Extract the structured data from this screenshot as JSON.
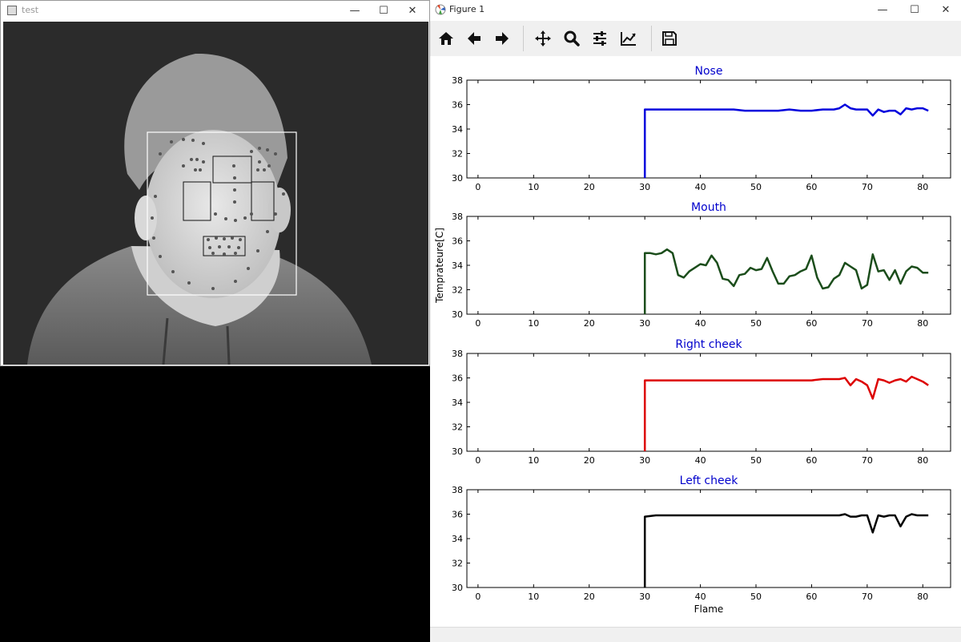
{
  "test_window": {
    "title": "test",
    "controls": [
      "—",
      "☐",
      "✕"
    ]
  },
  "figure_window": {
    "title": "Figure 1",
    "controls": [
      "—",
      "☐",
      "✕"
    ],
    "toolbar": [
      "home-icon",
      "back-icon",
      "forward-icon",
      "pan-icon",
      "zoom-icon",
      "configure-icon",
      "edit-axis-icon",
      "save-icon"
    ]
  },
  "colors": {
    "nose": "#0000dd",
    "mouth": "#1b4d1b",
    "right_cheek": "#dd0000",
    "left_cheek": "#000000",
    "title": "#0000cc"
  },
  "chart_data": [
    {
      "type": "line",
      "title": "Nose",
      "xlabel": "",
      "ylabel": "",
      "xlim": [
        -2,
        85
      ],
      "ylim": [
        30,
        38
      ],
      "xticks": [
        0,
        10,
        20,
        30,
        40,
        50,
        60,
        70,
        80
      ],
      "yticks": [
        30,
        32,
        34,
        36,
        38
      ],
      "series": [
        {
          "color": "#0000dd",
          "x": [
            30,
            30,
            32,
            34,
            36,
            38,
            40,
            42,
            44,
            46,
            48,
            50,
            52,
            54,
            56,
            58,
            60,
            62,
            64,
            65,
            66,
            67,
            68,
            69,
            70,
            71,
            72,
            73,
            74,
            75,
            76,
            77,
            78,
            79,
            80,
            81
          ],
          "y": [
            30,
            35.6,
            35.6,
            35.6,
            35.6,
            35.6,
            35.6,
            35.6,
            35.6,
            35.6,
            35.5,
            35.5,
            35.5,
            35.5,
            35.6,
            35.5,
            35.5,
            35.6,
            35.6,
            35.7,
            36.0,
            35.7,
            35.6,
            35.6,
            35.6,
            35.1,
            35.6,
            35.4,
            35.5,
            35.5,
            35.2,
            35.7,
            35.6,
            35.7,
            35.7,
            35.5
          ]
        }
      ]
    },
    {
      "type": "line",
      "title": "Mouth",
      "xlabel": "",
      "ylabel": "Temprateure[C]",
      "xlim": [
        -2,
        85
      ],
      "ylim": [
        30,
        38
      ],
      "xticks": [
        0,
        10,
        20,
        30,
        40,
        50,
        60,
        70,
        80
      ],
      "yticks": [
        30,
        32,
        34,
        36,
        38
      ],
      "series": [
        {
          "color": "#1b4d1b",
          "x": [
            30,
            30,
            31,
            32,
            33,
            34,
            35,
            36,
            37,
            38,
            39,
            40,
            41,
            42,
            43,
            44,
            45,
            46,
            47,
            48,
            49,
            50,
            51,
            52,
            53,
            54,
            55,
            56,
            57,
            58,
            59,
            60,
            61,
            62,
            63,
            64,
            65,
            66,
            67,
            68,
            69,
            70,
            71,
            72,
            73,
            74,
            75,
            76,
            77,
            78,
            79,
            80,
            81
          ],
          "y": [
            30,
            35.0,
            35.0,
            34.9,
            35.0,
            35.3,
            35.0,
            33.2,
            33.0,
            33.5,
            33.8,
            34.1,
            34.0,
            34.8,
            34.2,
            32.9,
            32.8,
            32.3,
            33.2,
            33.3,
            33.8,
            33.6,
            33.7,
            34.6,
            33.5,
            32.5,
            32.5,
            33.1,
            33.2,
            33.5,
            33.7,
            34.8,
            33.0,
            32.1,
            32.2,
            32.9,
            33.2,
            34.2,
            33.9,
            33.6,
            32.1,
            32.4,
            34.9,
            33.5,
            33.6,
            32.8,
            33.6,
            32.5,
            33.5,
            33.9,
            33.8,
            33.4,
            33.4
          ]
        }
      ]
    },
    {
      "type": "line",
      "title": "Right cheek",
      "xlabel": "",
      "ylabel": "",
      "xlim": [
        -2,
        85
      ],
      "ylim": [
        30,
        38
      ],
      "xticks": [
        0,
        10,
        20,
        30,
        40,
        50,
        60,
        70,
        80
      ],
      "yticks": [
        30,
        32,
        34,
        36,
        38
      ],
      "series": [
        {
          "color": "#dd0000",
          "x": [
            30,
            30,
            32,
            34,
            36,
            38,
            40,
            42,
            44,
            46,
            48,
            50,
            52,
            54,
            56,
            58,
            60,
            62,
            64,
            65,
            66,
            67,
            68,
            69,
            70,
            71,
            72,
            73,
            74,
            75,
            76,
            77,
            78,
            79,
            80,
            81
          ],
          "y": [
            30,
            35.8,
            35.8,
            35.8,
            35.8,
            35.8,
            35.8,
            35.8,
            35.8,
            35.8,
            35.8,
            35.8,
            35.8,
            35.8,
            35.8,
            35.8,
            35.8,
            35.9,
            35.9,
            35.9,
            36.0,
            35.4,
            35.9,
            35.7,
            35.4,
            34.3,
            35.9,
            35.8,
            35.6,
            35.8,
            35.9,
            35.7,
            36.1,
            35.9,
            35.7,
            35.4
          ]
        }
      ]
    },
    {
      "type": "line",
      "title": "Left cheek",
      "xlabel": "Flame",
      "ylabel": "",
      "xlim": [
        -2,
        85
      ],
      "ylim": [
        30,
        38
      ],
      "xticks": [
        0,
        10,
        20,
        30,
        40,
        50,
        60,
        70,
        80
      ],
      "yticks": [
        30,
        32,
        34,
        36,
        38
      ],
      "series": [
        {
          "color": "#000000",
          "x": [
            30,
            30,
            32,
            34,
            36,
            38,
            40,
            42,
            44,
            46,
            48,
            50,
            52,
            54,
            56,
            58,
            60,
            62,
            64,
            65,
            66,
            67,
            68,
            69,
            70,
            71,
            72,
            73,
            74,
            75,
            76,
            77,
            78,
            79,
            80,
            81
          ],
          "y": [
            30,
            35.8,
            35.9,
            35.9,
            35.9,
            35.9,
            35.9,
            35.9,
            35.9,
            35.9,
            35.9,
            35.9,
            35.9,
            35.9,
            35.9,
            35.9,
            35.9,
            35.9,
            35.9,
            35.9,
            36.0,
            35.8,
            35.8,
            35.9,
            35.9,
            34.5,
            35.9,
            35.8,
            35.9,
            35.9,
            35.0,
            35.8,
            36.0,
            35.9,
            35.9,
            35.9
          ]
        }
      ]
    }
  ]
}
